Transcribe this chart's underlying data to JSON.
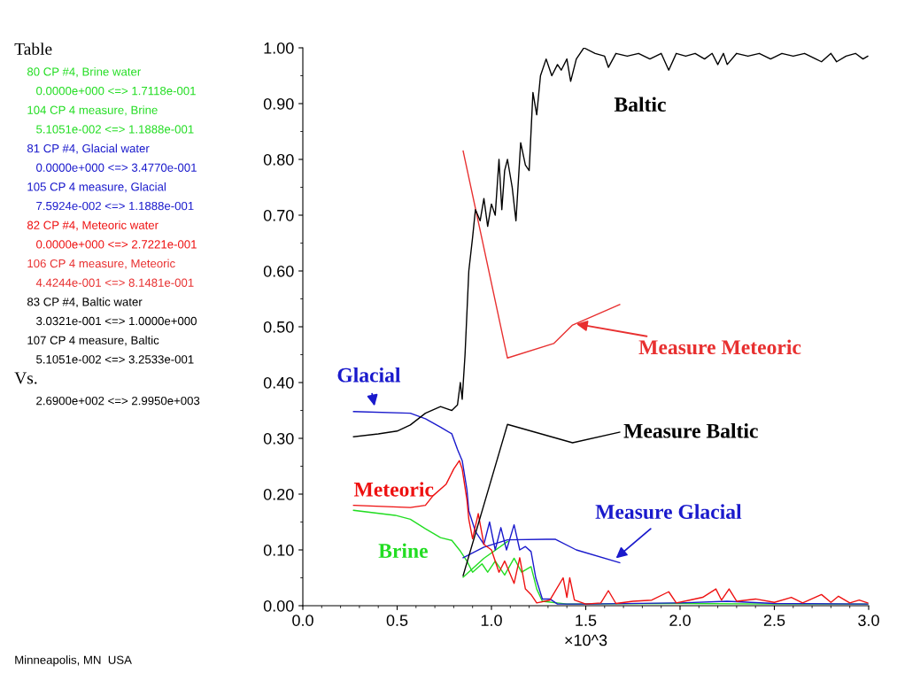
{
  "chart_data": {
    "type": "line",
    "xlabel": "×10^3",
    "xlim": [
      0.0,
      3.0
    ],
    "xticks": [
      {
        "value": 0.0,
        "label": "0.0"
      },
      {
        "value": 0.5,
        "label": "0.5"
      },
      {
        "value": 1.0,
        "label": "1.0"
      },
      {
        "value": 1.5,
        "label": "1.5"
      },
      {
        "value": 2.0,
        "label": "2.0"
      },
      {
        "value": 2.5,
        "label": "2.5"
      },
      {
        "value": 3.0,
        "label": "3.0"
      }
    ],
    "ylim": [
      0.0,
      1.0
    ],
    "yticks": [
      {
        "value": 0.0,
        "label": "0.00"
      },
      {
        "value": 0.1,
        "label": "0.10"
      },
      {
        "value": 0.2,
        "label": "0.20"
      },
      {
        "value": 0.3,
        "label": "0.30"
      },
      {
        "value": 0.4,
        "label": "0.40"
      },
      {
        "value": 0.5,
        "label": "0.50"
      },
      {
        "value": 0.6,
        "label": "0.60"
      },
      {
        "value": 0.7,
        "label": "0.70"
      },
      {
        "value": 0.8,
        "label": "0.80"
      },
      {
        "value": 0.9,
        "label": "0.90"
      },
      {
        "value": 1.0,
        "label": "1.00"
      }
    ],
    "grid": false,
    "legend": false,
    "series": [
      {
        "name": "Brine",
        "color": "#22dd22",
        "x": [
          0.269,
          0.49,
          0.57,
          0.65,
          0.73,
          0.79,
          0.835,
          0.87,
          0.9,
          0.95,
          0.98,
          1.02,
          1.07,
          1.12,
          1.16,
          1.21,
          1.24,
          1.27,
          1.4,
          2.0,
          2.5,
          2.995
        ],
        "values": [
          0.171,
          0.162,
          0.155,
          0.138,
          0.122,
          0.117,
          0.098,
          0.08,
          0.06,
          0.075,
          0.06,
          0.08,
          0.055,
          0.085,
          0.06,
          0.07,
          0.03,
          0.008,
          0.003,
          0.004,
          0.003,
          0.003
        ]
      },
      {
        "color": "#22dd22",
        "x": [
          0.85,
          0.96,
          1.085
        ],
        "values": [
          0.051,
          0.085,
          0.115
        ]
      },
      {
        "name": "Glacial",
        "color": "#1a1acc",
        "x": [
          0.269,
          0.57,
          0.65,
          0.73,
          0.79,
          0.82,
          0.845,
          0.87,
          0.88,
          0.915,
          0.96,
          0.99,
          1.02,
          1.05,
          1.08,
          1.12,
          1.15,
          1.18,
          1.21,
          1.235,
          1.27,
          1.31,
          1.35,
          1.5,
          2.0,
          2.25,
          2.5,
          2.995
        ],
        "values": [
          0.348,
          0.345,
          0.335,
          0.32,
          0.308,
          0.28,
          0.26,
          0.208,
          0.17,
          0.133,
          0.11,
          0.15,
          0.1,
          0.14,
          0.1,
          0.145,
          0.1,
          0.106,
          0.097,
          0.05,
          0.012,
          0.012,
          0.003,
          0.003,
          0.005,
          0.008,
          0.004,
          0.003
        ]
      },
      {
        "name": "Measure Glacial",
        "color": "#1a1acc",
        "x": [
          0.85,
          0.96,
          1.085,
          1.29,
          1.34,
          1.45,
          1.68
        ],
        "values": [
          0.086,
          0.105,
          0.118,
          0.119,
          0.119,
          0.1,
          0.077
        ]
      },
      {
        "name": "Meteoric",
        "color": "#ee1111",
        "x": [
          0.269,
          0.57,
          0.65,
          0.69,
          0.76,
          0.8,
          0.83,
          0.845,
          0.87,
          0.88,
          0.9,
          0.93,
          0.96,
          1.0,
          1.04,
          1.07,
          1.12,
          1.15,
          1.18,
          1.21,
          1.24,
          1.31,
          1.38,
          1.4,
          1.415,
          1.44,
          1.5,
          1.58,
          1.62,
          1.66,
          1.75,
          1.85,
          1.94,
          1.98,
          2.05,
          2.12,
          2.19,
          2.22,
          2.26,
          2.3,
          2.4,
          2.5,
          2.59,
          2.65,
          2.75,
          2.8,
          2.84,
          2.9,
          2.95,
          2.995
        ],
        "values": [
          0.18,
          0.176,
          0.18,
          0.197,
          0.218,
          0.245,
          0.26,
          0.245,
          0.19,
          0.155,
          0.12,
          0.165,
          0.11,
          0.1,
          0.06,
          0.08,
          0.04,
          0.086,
          0.03,
          0.02,
          0.005,
          0.01,
          0.05,
          0.015,
          0.05,
          0.01,
          0.003,
          0.005,
          0.027,
          0.004,
          0.008,
          0.01,
          0.025,
          0.005,
          0.01,
          0.015,
          0.03,
          0.01,
          0.03,
          0.008,
          0.012,
          0.006,
          0.015,
          0.005,
          0.02,
          0.006,
          0.017,
          0.005,
          0.01,
          0.005
        ]
      },
      {
        "name": "Measure Meteoric",
        "color": "#e83030",
        "x": [
          0.85,
          1.085,
          1.33,
          1.43,
          1.68
        ],
        "values": [
          0.815,
          0.444,
          0.47,
          0.503,
          0.54
        ]
      },
      {
        "name": "Baltic",
        "color": "#000000",
        "x": [
          0.269,
          0.4,
          0.5,
          0.57,
          0.65,
          0.73,
          0.79,
          0.82,
          0.835,
          0.845,
          0.86,
          0.88,
          0.9,
          0.915,
          0.94,
          0.96,
          0.98,
          1.0,
          1.02,
          1.04,
          1.055,
          1.07,
          1.085,
          1.11,
          1.13,
          1.155,
          1.18,
          1.2,
          1.22,
          1.24,
          1.26,
          1.29,
          1.32,
          1.35,
          1.37,
          1.4,
          1.42,
          1.45,
          1.49,
          1.55,
          1.6,
          1.62,
          1.66,
          1.72,
          1.78,
          1.84,
          1.9,
          1.94,
          1.98,
          2.03,
          2.08,
          2.13,
          2.17,
          2.2,
          2.23,
          2.25,
          2.3,
          2.36,
          2.42,
          2.48,
          2.54,
          2.6,
          2.66,
          2.72,
          2.75,
          2.8,
          2.83,
          2.88,
          2.93,
          2.97,
          2.995
        ],
        "values": [
          0.303,
          0.308,
          0.313,
          0.324,
          0.345,
          0.357,
          0.35,
          0.36,
          0.4,
          0.37,
          0.45,
          0.6,
          0.66,
          0.71,
          0.69,
          0.73,
          0.68,
          0.72,
          0.7,
          0.8,
          0.71,
          0.78,
          0.8,
          0.75,
          0.69,
          0.83,
          0.79,
          0.78,
          0.92,
          0.88,
          0.95,
          0.98,
          0.95,
          0.97,
          0.96,
          0.98,
          0.94,
          0.98,
          1.0,
          0.99,
          0.985,
          0.965,
          0.99,
          0.985,
          0.99,
          0.98,
          0.99,
          0.96,
          0.99,
          0.985,
          0.99,
          0.98,
          0.99,
          0.97,
          0.99,
          0.97,
          0.99,
          0.985,
          0.99,
          0.98,
          0.99,
          0.985,
          0.99,
          0.98,
          0.975,
          0.99,
          0.975,
          0.985,
          0.99,
          0.98,
          0.985
        ]
      },
      {
        "name": "Measure Baltic",
        "color": "#000000",
        "x": [
          0.85,
          1.085,
          1.43,
          1.68
        ],
        "values": [
          0.054,
          0.325,
          0.292,
          0.311
        ]
      }
    ],
    "annotations": [
      "Table",
      "80 CP #4, Brine water",
      "0.0000e+000 <=> 1.7118e-001",
      "104 CP 4 measure, Brine",
      "5.1051e-002 <=> 1.1888e-001",
      "81 CP #4, Glacial water",
      "0.0000e+000 <=> 3.4770e-001",
      "105 CP 4 measure, Glacial",
      "7.5924e-002 <=> 1.1888e-001",
      "82 CP #4, Meteoric water",
      "0.0000e+000 <=> 2.7221e-001",
      "106 CP 4 measure, Meteoric",
      "4.4244e-001 <=> 8.1481e-001",
      "83 CP #4, Baltic water",
      "3.0321e-001 <=> 1.0000e+000",
      "107 CP 4 measure, Baltic",
      "5.1051e-002 <=> 3.2533e-001",
      "Vs.",
      "2.6900e+002 <=> 2.9950e+003",
      "Minneapolis, MN  USA"
    ]
  }
}
